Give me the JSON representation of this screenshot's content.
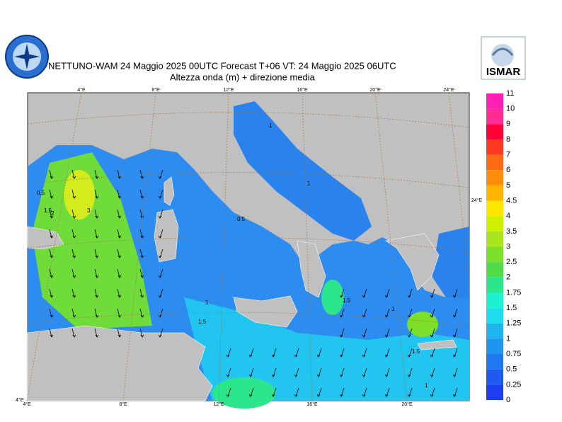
{
  "header": {
    "title": "NETTUNO-WAM  24   Maggio  2025 00UTC Forecast T+06 VT: 24   Maggio  2025 06UTC",
    "subtitle": "Altezza onda (m) + direzione media",
    "right_logo": "ISMAR"
  },
  "map": {
    "top_lon_labels": [
      "4°E",
      "8°E",
      "12°E",
      "16°E",
      "20°E",
      "24°E"
    ],
    "bottom_lon_labels": [
      "4°E",
      "8°E",
      "12°E",
      "16°E",
      "20°E"
    ],
    "right_label": "24°E",
    "corner_label": "4°E",
    "contour_labels": [
      "0.5",
      "1.5",
      "2",
      "3",
      "0.5",
      "1",
      "1",
      "1.5",
      "1",
      "1.5",
      "1",
      "1.5",
      "1"
    ]
  },
  "legend": {
    "labels": [
      11,
      10,
      9,
      8,
      7,
      6,
      5,
      4.5,
      4,
      3.5,
      3,
      2.5,
      2,
      1.75,
      1.5,
      1.25,
      1,
      0.75,
      0.5,
      0.25,
      0
    ],
    "colors": [
      "#ff1fb4",
      "#ff2c96",
      "#ff0037",
      "#ff3a1e",
      "#ff6a12",
      "#ff8c0a",
      "#ffb400",
      "#ffe600",
      "#ccf000",
      "#a8e61e",
      "#7ce028",
      "#50dc46",
      "#2ce68c",
      "#1ef0d2",
      "#1edcf0",
      "#1eb4f0",
      "#1e96f0",
      "#1e78f0",
      "#1e5af0",
      "#1e3cf0"
    ]
  }
}
